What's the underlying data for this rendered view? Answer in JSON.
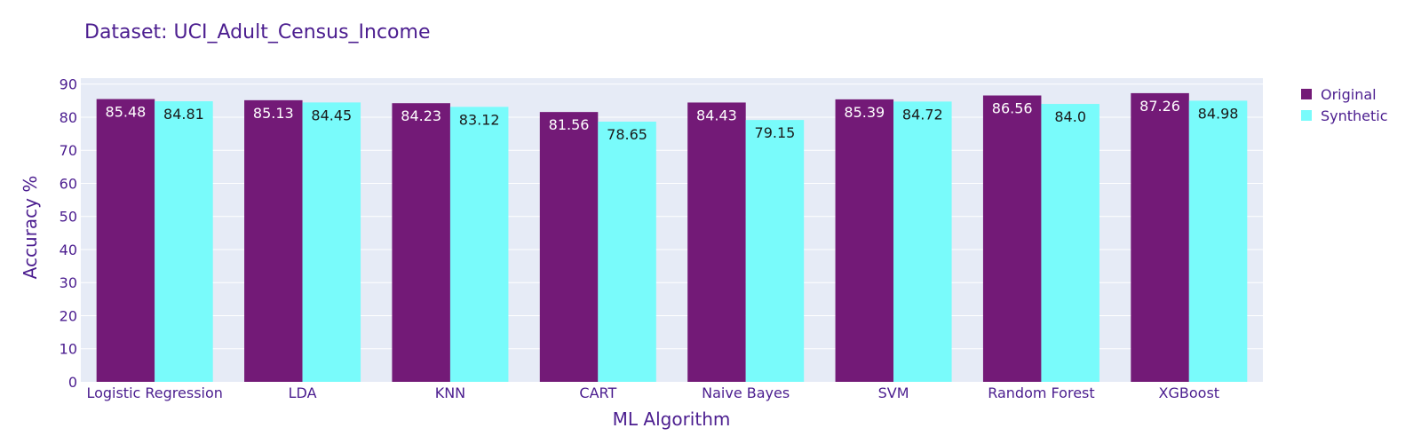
{
  "chart_data": {
    "type": "bar",
    "title": "Dataset: UCI_Adult_Census_Income",
    "xlabel": "ML Algorithm",
    "ylabel": "Accuracy %",
    "ylim": [
      0,
      90
    ],
    "yticks": [
      0,
      10,
      20,
      30,
      40,
      50,
      60,
      70,
      80,
      90
    ],
    "grid": true,
    "legend_position": "top-right",
    "categories": [
      "Logistic Regression",
      "LDA",
      "KNN",
      "CART",
      "Naive Bayes",
      "SVM",
      "Random Forest",
      "XGBoost"
    ],
    "series": [
      {
        "name": "Original",
        "color": "#731a77",
        "label_color": "#ffffff",
        "values": [
          85.48,
          85.13,
          84.23,
          81.56,
          84.43,
          85.39,
          86.56,
          87.26
        ],
        "labels": [
          "85.48",
          "85.13",
          "84.23",
          "81.56",
          "84.43",
          "85.39",
          "86.56",
          "87.26"
        ]
      },
      {
        "name": "Synthetic",
        "color": "#79fbfb",
        "label_color": "#1a1a1a",
        "values": [
          84.81,
          84.45,
          83.12,
          78.65,
          79.15,
          84.72,
          84.0,
          84.98
        ],
        "labels": [
          "84.81",
          "84.45",
          "83.12",
          "78.65",
          "79.15",
          "84.72",
          "84.0",
          "84.98"
        ]
      }
    ]
  }
}
